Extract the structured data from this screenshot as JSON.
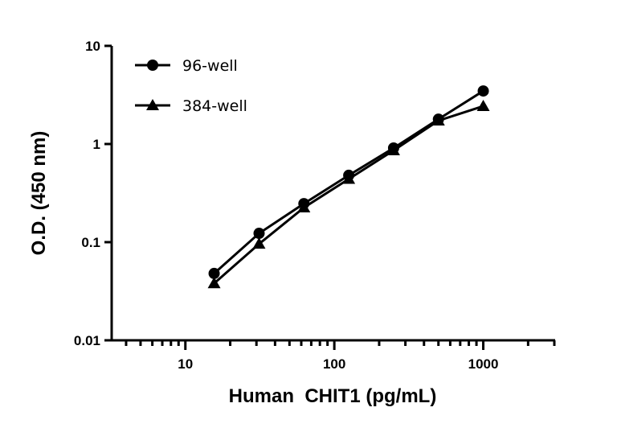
{
  "chart_data": {
    "type": "line",
    "xlabel": "Human  CHIT1 (pg/mL)",
    "ylabel": "O.D. (450 nm)",
    "xscale": "log",
    "yscale": "log",
    "xlim": [
      3.2,
      3000
    ],
    "ylim": [
      0.01,
      10
    ],
    "x_ticks": [
      {
        "value": 10,
        "label": "10"
      },
      {
        "value": 100,
        "label": "100"
      },
      {
        "value": 1000,
        "label": "1000"
      }
    ],
    "y_ticks": [
      {
        "value": 0.01,
        "label": "0.01"
      },
      {
        "value": 0.1,
        "label": "0.1"
      },
      {
        "value": 1,
        "label": "1"
      },
      {
        "value": 10,
        "label": "10"
      }
    ],
    "grid": false,
    "legend_position": "top-left",
    "x": [
      15.6,
      31.25,
      62.5,
      125,
      250,
      500,
      1000
    ],
    "series": [
      {
        "name": "96-well",
        "marker": "circle",
        "color": "#000000",
        "values": [
          0.048,
          0.123,
          0.247,
          0.48,
          0.91,
          1.79,
          3.47
        ]
      },
      {
        "name": "384-well",
        "marker": "triangle",
        "color": "#000000",
        "values": [
          0.038,
          0.096,
          0.225,
          0.44,
          0.86,
          1.73,
          2.43
        ]
      }
    ]
  }
}
